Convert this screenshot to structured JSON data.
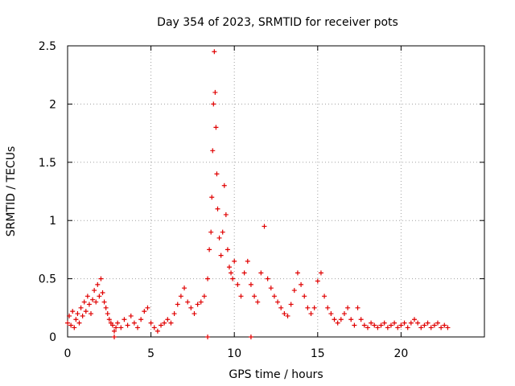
{
  "chart_data": {
    "type": "scatter",
    "title": "Day 354 of 2023, SRMTID for receiver pots",
    "xlabel": "GPS time / hours",
    "ylabel": "SRMTID / TECUs",
    "xlim": [
      0,
      25
    ],
    "ylim": [
      0,
      2.5
    ],
    "xticks": [
      0,
      5,
      10,
      15,
      20
    ],
    "yticks": [
      0,
      0.5,
      1,
      1.5,
      2,
      2.5
    ],
    "xtick_labels": [
      "0",
      "5",
      "10",
      "15",
      "20"
    ],
    "ytick_labels": [
      "0",
      "0.5",
      "1",
      "1.5",
      "2",
      "2.5"
    ],
    "grid": true,
    "marker": "plus",
    "series": [
      {
        "name": "SRMTID",
        "color": "#e00000",
        "points": [
          [
            0.0,
            0.12
          ],
          [
            0.1,
            0.18
          ],
          [
            0.2,
            0.1
          ],
          [
            0.3,
            0.22
          ],
          [
            0.4,
            0.08
          ],
          [
            0.5,
            0.15
          ],
          [
            0.6,
            0.2
          ],
          [
            0.7,
            0.12
          ],
          [
            0.8,
            0.25
          ],
          [
            0.9,
            0.18
          ],
          [
            1.0,
            0.3
          ],
          [
            1.1,
            0.22
          ],
          [
            1.2,
            0.35
          ],
          [
            1.3,
            0.28
          ],
          [
            1.4,
            0.2
          ],
          [
            1.5,
            0.32
          ],
          [
            1.6,
            0.4
          ],
          [
            1.7,
            0.3
          ],
          [
            1.8,
            0.45
          ],
          [
            1.9,
            0.35
          ],
          [
            2.0,
            0.5
          ],
          [
            2.1,
            0.38
          ],
          [
            2.2,
            0.3
          ],
          [
            2.3,
            0.25
          ],
          [
            2.4,
            0.2
          ],
          [
            2.5,
            0.15
          ],
          [
            2.6,
            0.12
          ],
          [
            2.7,
            0.1
          ],
          [
            2.8,
            0.05
          ],
          [
            2.9,
            0.08
          ],
          [
            3.0,
            0.12
          ],
          [
            3.2,
            0.08
          ],
          [
            3.4,
            0.15
          ],
          [
            3.6,
            0.1
          ],
          [
            3.8,
            0.18
          ],
          [
            4.0,
            0.12
          ],
          [
            4.2,
            0.08
          ],
          [
            4.4,
            0.15
          ],
          [
            4.6,
            0.22
          ],
          [
            4.8,
            0.25
          ],
          [
            5.0,
            0.12
          ],
          [
            5.2,
            0.08
          ],
          [
            5.4,
            0.05
          ],
          [
            5.6,
            0.1
          ],
          [
            5.8,
            0.12
          ],
          [
            6.0,
            0.15
          ],
          [
            6.2,
            0.12
          ],
          [
            6.4,
            0.2
          ],
          [
            6.6,
            0.28
          ],
          [
            6.8,
            0.35
          ],
          [
            7.0,
            0.42
          ],
          [
            7.2,
            0.3
          ],
          [
            7.4,
            0.25
          ],
          [
            7.6,
            0.2
          ],
          [
            7.8,
            0.28
          ],
          [
            8.0,
            0.3
          ],
          [
            8.2,
            0.35
          ],
          [
            8.4,
            0.5
          ],
          [
            8.5,
            0.75
          ],
          [
            8.6,
            0.9
          ],
          [
            8.65,
            1.2
          ],
          [
            8.7,
            1.6
          ],
          [
            8.75,
            2.0
          ],
          [
            8.8,
            2.45
          ],
          [
            8.85,
            2.1
          ],
          [
            8.9,
            1.8
          ],
          [
            8.95,
            1.4
          ],
          [
            9.0,
            1.1
          ],
          [
            9.1,
            0.85
          ],
          [
            9.2,
            0.7
          ],
          [
            9.3,
            0.9
          ],
          [
            9.4,
            1.3
          ],
          [
            9.5,
            1.05
          ],
          [
            9.6,
            0.75
          ],
          [
            9.7,
            0.6
          ],
          [
            9.8,
            0.55
          ],
          [
            9.9,
            0.5
          ],
          [
            10.0,
            0.65
          ],
          [
            10.2,
            0.45
          ],
          [
            10.4,
            0.35
          ],
          [
            10.6,
            0.55
          ],
          [
            10.8,
            0.65
          ],
          [
            11.0,
            0.45
          ],
          [
            11.2,
            0.35
          ],
          [
            11.4,
            0.3
          ],
          [
            11.6,
            0.55
          ],
          [
            11.8,
            0.95
          ],
          [
            12.0,
            0.5
          ],
          [
            12.2,
            0.42
          ],
          [
            12.4,
            0.35
          ],
          [
            12.6,
            0.3
          ],
          [
            12.8,
            0.25
          ],
          [
            13.0,
            0.2
          ],
          [
            13.2,
            0.18
          ],
          [
            13.4,
            0.28
          ],
          [
            13.6,
            0.4
          ],
          [
            13.8,
            0.55
          ],
          [
            14.0,
            0.45
          ],
          [
            14.2,
            0.35
          ],
          [
            14.4,
            0.25
          ],
          [
            14.6,
            0.2
          ],
          [
            14.8,
            0.25
          ],
          [
            15.0,
            0.48
          ],
          [
            15.2,
            0.55
          ],
          [
            15.4,
            0.35
          ],
          [
            15.6,
            0.25
          ],
          [
            15.8,
            0.2
          ],
          [
            16.0,
            0.15
          ],
          [
            16.2,
            0.12
          ],
          [
            16.4,
            0.15
          ],
          [
            16.6,
            0.2
          ],
          [
            16.8,
            0.25
          ],
          [
            17.0,
            0.15
          ],
          [
            17.2,
            0.1
          ],
          [
            17.4,
            0.25
          ],
          [
            17.6,
            0.15
          ],
          [
            17.8,
            0.1
          ],
          [
            18.0,
            0.08
          ],
          [
            18.2,
            0.12
          ],
          [
            18.4,
            0.1
          ],
          [
            18.6,
            0.08
          ],
          [
            18.8,
            0.1
          ],
          [
            19.0,
            0.12
          ],
          [
            19.2,
            0.08
          ],
          [
            19.4,
            0.1
          ],
          [
            19.6,
            0.12
          ],
          [
            19.8,
            0.08
          ],
          [
            20.0,
            0.1
          ],
          [
            20.2,
            0.12
          ],
          [
            20.4,
            0.08
          ],
          [
            20.6,
            0.12
          ],
          [
            20.8,
            0.15
          ],
          [
            21.0,
            0.12
          ],
          [
            21.2,
            0.08
          ],
          [
            21.4,
            0.1
          ],
          [
            21.6,
            0.12
          ],
          [
            21.8,
            0.08
          ],
          [
            22.0,
            0.1
          ],
          [
            22.2,
            0.12
          ],
          [
            22.4,
            0.08
          ],
          [
            22.6,
            0.1
          ],
          [
            22.8,
            0.08
          ],
          [
            2.8,
            0.0
          ],
          [
            8.4,
            0.0
          ],
          [
            11.0,
            0.0
          ]
        ]
      }
    ]
  }
}
